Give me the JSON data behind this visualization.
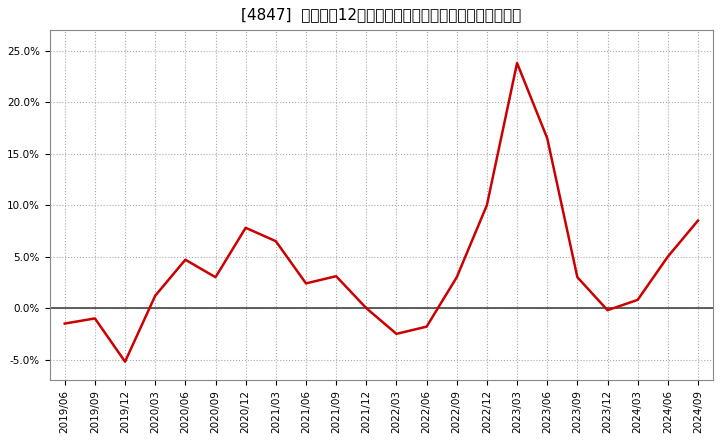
{
  "title": "[4847]  売上高の12か月移動合計の対前年同期増減率の推移",
  "x_labels": [
    "2019/06",
    "2019/09",
    "2019/12",
    "2020/03",
    "2020/06",
    "2020/09",
    "2020/12",
    "2021/03",
    "2021/06",
    "2021/09",
    "2021/12",
    "2022/03",
    "2022/06",
    "2022/09",
    "2022/12",
    "2023/03",
    "2023/06",
    "2023/09",
    "2023/12",
    "2024/03",
    "2024/06",
    "2024/09"
  ],
  "y_values": [
    -1.5,
    -1.0,
    -5.2,
    1.2,
    4.7,
    3.0,
    7.8,
    6.5,
    2.4,
    3.1,
    0.0,
    -2.5,
    -1.8,
    3.0,
    10.0,
    23.8,
    16.5,
    3.0,
    -0.2,
    0.8,
    5.0,
    8.5
  ],
  "line_color": "#cc0000",
  "line_width": 1.8,
  "background_color": "#ffffff",
  "plot_background": "#ffffff",
  "grid_color": "#aaaaaa",
  "zero_line_color": "#444444",
  "ylim": [
    -7.0,
    27.0
  ],
  "yticks": [
    -5.0,
    0.0,
    5.0,
    10.0,
    15.0,
    20.0,
    25.0
  ],
  "ytick_labels": [
    "-5.0%",
    "0.0%",
    "5.0%",
    "10.0%",
    "15.0%",
    "20.0%",
    "25.0%"
  ],
  "title_fontsize": 11,
  "tick_fontsize": 7.5
}
